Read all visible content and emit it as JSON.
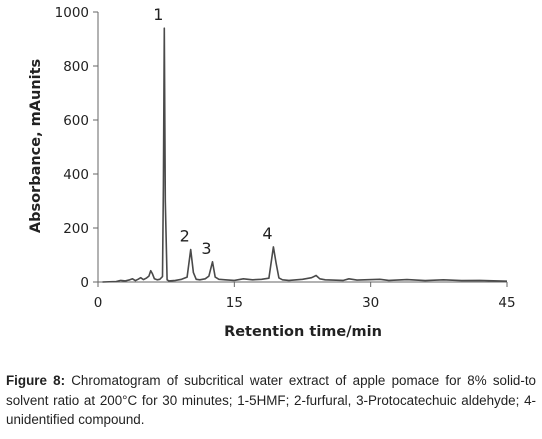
{
  "chart_data": {
    "type": "line",
    "title": "",
    "xlabel": "Retention time/min",
    "ylabel": "Absorbance, mAunits",
    "xlim": [
      0,
      45
    ],
    "ylim": [
      0,
      1000
    ],
    "x_ticks": [
      "0",
      "15",
      "30",
      "45"
    ],
    "y_ticks": [
      "0",
      "200",
      "400",
      "600",
      "800",
      "1000"
    ],
    "grid": false,
    "legend": "none",
    "line_color": "#4a4a4a",
    "series": [
      {
        "x": [
          0.5,
          2.0,
          2.5,
          3.0,
          3.5,
          3.8,
          4.1,
          4.4,
          4.7,
          5.0,
          5.3,
          5.6,
          5.8,
          6.0,
          6.2,
          6.5,
          6.8,
          7.1,
          7.2,
          7.3,
          7.4,
          7.6,
          7.8,
          8.5,
          9.2,
          9.8,
          10.2,
          10.5,
          10.8,
          11.2,
          11.8,
          12.2,
          12.6,
          12.9,
          13.3,
          14.0,
          15.0,
          16.0,
          17.0,
          18.0,
          18.8,
          19.3,
          19.6,
          19.9,
          20.3,
          21.0,
          22.5,
          23.5,
          24.0,
          24.4,
          25.0,
          27.0,
          27.6,
          28.5,
          31.0,
          32.0,
          34.0,
          36.0,
          38.0,
          40.0,
          42.0,
          44.0,
          45.0
        ],
        "y": [
          0,
          2,
          6,
          4,
          8,
          12,
          5,
          10,
          16,
          9,
          14,
          22,
          42,
          30,
          12,
          8,
          10,
          20,
          360,
          940,
          300,
          8,
          4,
          6,
          10,
          18,
          120,
          35,
          10,
          8,
          12,
          22,
          75,
          18,
          10,
          8,
          6,
          12,
          8,
          10,
          14,
          130,
          70,
          15,
          8,
          6,
          10,
          16,
          24,
          12,
          8,
          6,
          12,
          7,
          10,
          6,
          9,
          5,
          8,
          5,
          6,
          4,
          3
        ]
      }
    ],
    "annotations": [
      {
        "label": "1",
        "x": 7.3,
        "y": 940
      },
      {
        "label": "2",
        "x": 10.2,
        "y": 120
      },
      {
        "label": "3",
        "x": 12.6,
        "y": 75
      },
      {
        "label": "4",
        "x": 19.3,
        "y": 130
      }
    ]
  },
  "caption": {
    "label": "Figure 8:",
    "text": "Chromatogram of subcritical water extract of apple pomace for 8% solid-to solvent ratio at 200°C for 30 minutes; 1-5HMF; 2-furfural, 3-Protocatechuic aldehyde; 4- unidentified compound."
  }
}
